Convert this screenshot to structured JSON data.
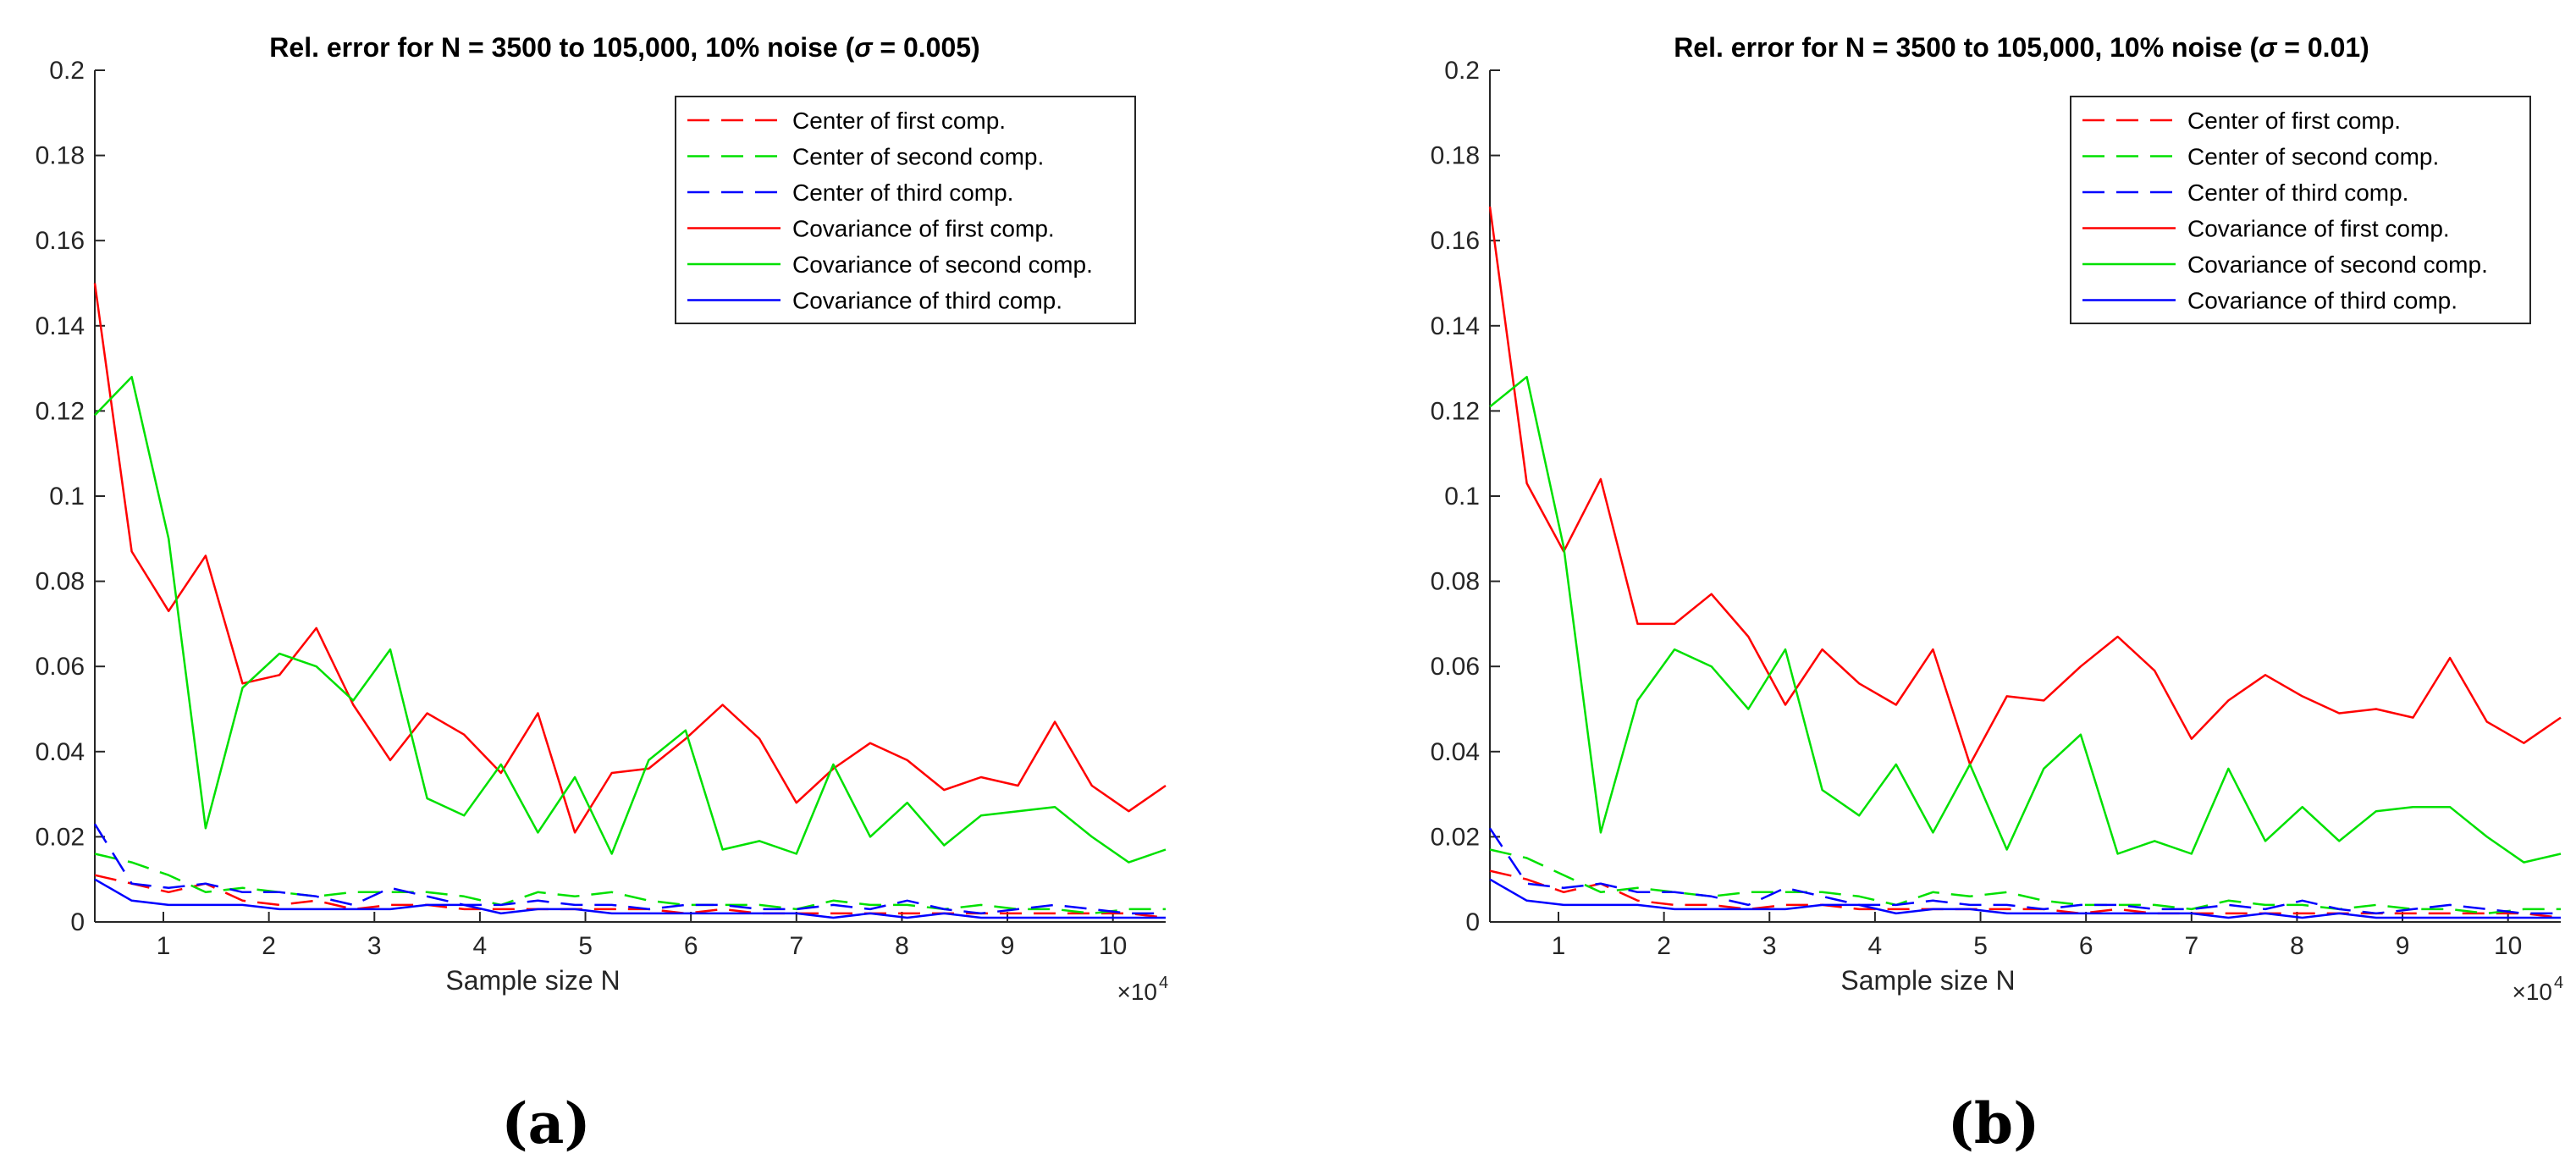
{
  "chart_data": [
    {
      "type": "line",
      "panel_label": "(a)",
      "title_prefix": "Rel.  error for N = 3500 to 105,000, 10% noise (",
      "title_sigma": "σ",
      "title_suffix": " = 0.005)",
      "xlabel": "Sample size N",
      "ylabel": "",
      "x_multiplier_base": "×10",
      "x_multiplier_exp": "4",
      "xlim": [
        3500,
        105000
      ],
      "ylim": [
        0,
        0.2
      ],
      "xticks": [
        1,
        2,
        3,
        4,
        5,
        6,
        7,
        8,
        9,
        10
      ],
      "yticks": [
        "0",
        "0.02",
        "0.04",
        "0.06",
        "0.08",
        "0.1",
        "0.12",
        "0.14",
        "0.16",
        "0.18",
        "0.2"
      ],
      "x": [
        3500,
        7000,
        10500,
        14000,
        17500,
        21000,
        24500,
        28000,
        31500,
        35000,
        38500,
        42000,
        45500,
        49000,
        52500,
        56000,
        59500,
        63000,
        66500,
        70000,
        73500,
        77000,
        80500,
        84000,
        87500,
        91000,
        94500,
        98000,
        101500,
        105000
      ],
      "series": [
        {
          "name": "Center of first comp.",
          "color": "#ff0000",
          "dash": "dashed",
          "values": [
            0.011,
            0.009,
            0.007,
            0.009,
            0.005,
            0.004,
            0.005,
            0.003,
            0.004,
            0.004,
            0.003,
            0.003,
            0.003,
            0.003,
            0.003,
            0.003,
            0.002,
            0.003,
            0.002,
            0.002,
            0.002,
            0.002,
            0.002,
            0.002,
            0.002,
            0.002,
            0.002,
            0.002,
            0.002,
            0.001
          ]
        },
        {
          "name": "Center of second comp.",
          "color": "#00e000",
          "dash": "dashed",
          "values": [
            0.016,
            0.014,
            0.011,
            0.007,
            0.008,
            0.007,
            0.006,
            0.007,
            0.007,
            0.007,
            0.006,
            0.004,
            0.007,
            0.006,
            0.007,
            0.005,
            0.004,
            0.004,
            0.004,
            0.003,
            0.005,
            0.004,
            0.004,
            0.003,
            0.004,
            0.003,
            0.003,
            0.002,
            0.003,
            0.003
          ]
        },
        {
          "name": "Center of third comp.",
          "color": "#0000ff",
          "dash": "dashed",
          "values": [
            0.023,
            0.009,
            0.008,
            0.009,
            0.007,
            0.007,
            0.006,
            0.004,
            0.008,
            0.006,
            0.004,
            0.004,
            0.005,
            0.004,
            0.004,
            0.003,
            0.004,
            0.004,
            0.003,
            0.003,
            0.004,
            0.003,
            0.005,
            0.003,
            0.002,
            0.003,
            0.004,
            0.003,
            0.002,
            0.002
          ]
        },
        {
          "name": "Covariance of first comp.",
          "color": "#ff0000",
          "dash": "solid",
          "values": [
            0.15,
            0.087,
            0.073,
            0.086,
            0.056,
            0.058,
            0.069,
            0.051,
            0.038,
            0.049,
            0.044,
            0.035,
            0.049,
            0.021,
            0.035,
            0.036,
            0.043,
            0.051,
            0.043,
            0.028,
            0.036,
            0.042,
            0.038,
            0.031,
            0.034,
            0.032,
            0.047,
            0.032,
            0.026,
            0.032
          ]
        },
        {
          "name": "Covariance of second comp.",
          "color": "#00e000",
          "dash": "solid",
          "values": [
            0.119,
            0.128,
            0.09,
            0.022,
            0.055,
            0.063,
            0.06,
            0.052,
            0.064,
            0.029,
            0.025,
            0.037,
            0.021,
            0.034,
            0.016,
            0.038,
            0.045,
            0.017,
            0.019,
            0.016,
            0.037,
            0.02,
            0.028,
            0.018,
            0.025,
            0.026,
            0.027,
            0.02,
            0.014,
            0.017
          ]
        },
        {
          "name": "Covariance of third comp.",
          "color": "#0000ff",
          "dash": "solid",
          "values": [
            0.01,
            0.005,
            0.004,
            0.004,
            0.004,
            0.003,
            0.003,
            0.003,
            0.003,
            0.004,
            0.004,
            0.002,
            0.003,
            0.003,
            0.002,
            0.002,
            0.002,
            0.002,
            0.002,
            0.002,
            0.001,
            0.002,
            0.001,
            0.002,
            0.001,
            0.001,
            0.001,
            0.001,
            0.001,
            0.001
          ]
        }
      ]
    },
    {
      "type": "line",
      "panel_label": "(b)",
      "title_prefix": "Rel.  error for N = 3500 to 105,000, 10% noise (",
      "title_sigma": "σ",
      "title_suffix": " = 0.01)",
      "xlabel": "Sample size N",
      "ylabel": "",
      "x_multiplier_base": "×10",
      "x_multiplier_exp": "4",
      "xlim": [
        3500,
        105000
      ],
      "ylim": [
        0,
        0.2
      ],
      "xticks": [
        1,
        2,
        3,
        4,
        5,
        6,
        7,
        8,
        9,
        10
      ],
      "yticks": [
        "0",
        "0.02",
        "0.04",
        "0.06",
        "0.08",
        "0.1",
        "0.12",
        "0.14",
        "0.16",
        "0.18",
        "0.2"
      ],
      "x": [
        3500,
        7000,
        10500,
        14000,
        17500,
        21000,
        24500,
        28000,
        31500,
        35000,
        38500,
        42000,
        45500,
        49000,
        52500,
        56000,
        59500,
        63000,
        66500,
        70000,
        73500,
        77000,
        80500,
        84000,
        87500,
        91000,
        94500,
        98000,
        101500,
        105000
      ],
      "series": [
        {
          "name": "Center of first comp.",
          "color": "#ff0000",
          "dash": "dashed",
          "values": [
            0.012,
            0.01,
            0.007,
            0.009,
            0.005,
            0.004,
            0.004,
            0.003,
            0.004,
            0.004,
            0.003,
            0.003,
            0.003,
            0.003,
            0.003,
            0.003,
            0.002,
            0.003,
            0.002,
            0.002,
            0.002,
            0.002,
            0.002,
            0.002,
            0.002,
            0.002,
            0.002,
            0.002,
            0.002,
            0.001
          ]
        },
        {
          "name": "Center of second comp.",
          "color": "#00e000",
          "dash": "dashed",
          "values": [
            0.017,
            0.015,
            0.011,
            0.007,
            0.008,
            0.007,
            0.006,
            0.007,
            0.007,
            0.007,
            0.006,
            0.004,
            0.007,
            0.006,
            0.007,
            0.005,
            0.004,
            0.004,
            0.004,
            0.003,
            0.005,
            0.004,
            0.004,
            0.003,
            0.004,
            0.003,
            0.003,
            0.002,
            0.003,
            0.003
          ]
        },
        {
          "name": "Center of third comp.",
          "color": "#0000ff",
          "dash": "dashed",
          "values": [
            0.022,
            0.009,
            0.008,
            0.009,
            0.007,
            0.007,
            0.006,
            0.004,
            0.008,
            0.006,
            0.004,
            0.004,
            0.005,
            0.004,
            0.004,
            0.003,
            0.004,
            0.004,
            0.003,
            0.003,
            0.004,
            0.003,
            0.005,
            0.003,
            0.002,
            0.003,
            0.004,
            0.003,
            0.002,
            0.002
          ]
        },
        {
          "name": "Covariance of first comp.",
          "color": "#ff0000",
          "dash": "solid",
          "values": [
            0.168,
            0.103,
            0.087,
            0.104,
            0.07,
            0.07,
            0.077,
            0.067,
            0.051,
            0.064,
            0.056,
            0.051,
            0.064,
            0.037,
            0.053,
            0.052,
            0.06,
            0.067,
            0.059,
            0.043,
            0.052,
            0.058,
            0.053,
            0.049,
            0.05,
            0.048,
            0.062,
            0.047,
            0.042,
            0.048
          ]
        },
        {
          "name": "Covariance of second comp.",
          "color": "#00e000",
          "dash": "solid",
          "values": [
            0.121,
            0.128,
            0.088,
            0.021,
            0.052,
            0.064,
            0.06,
            0.05,
            0.064,
            0.031,
            0.025,
            0.037,
            0.021,
            0.037,
            0.017,
            0.036,
            0.044,
            0.016,
            0.019,
            0.016,
            0.036,
            0.019,
            0.027,
            0.019,
            0.026,
            0.027,
            0.027,
            0.02,
            0.014,
            0.016
          ]
        },
        {
          "name": "Covariance of third comp.",
          "color": "#0000ff",
          "dash": "solid",
          "values": [
            0.01,
            0.005,
            0.004,
            0.004,
            0.004,
            0.003,
            0.003,
            0.003,
            0.003,
            0.004,
            0.004,
            0.002,
            0.003,
            0.003,
            0.002,
            0.002,
            0.002,
            0.002,
            0.002,
            0.002,
            0.001,
            0.002,
            0.001,
            0.002,
            0.001,
            0.001,
            0.001,
            0.001,
            0.001,
            0.001
          ]
        }
      ]
    }
  ]
}
